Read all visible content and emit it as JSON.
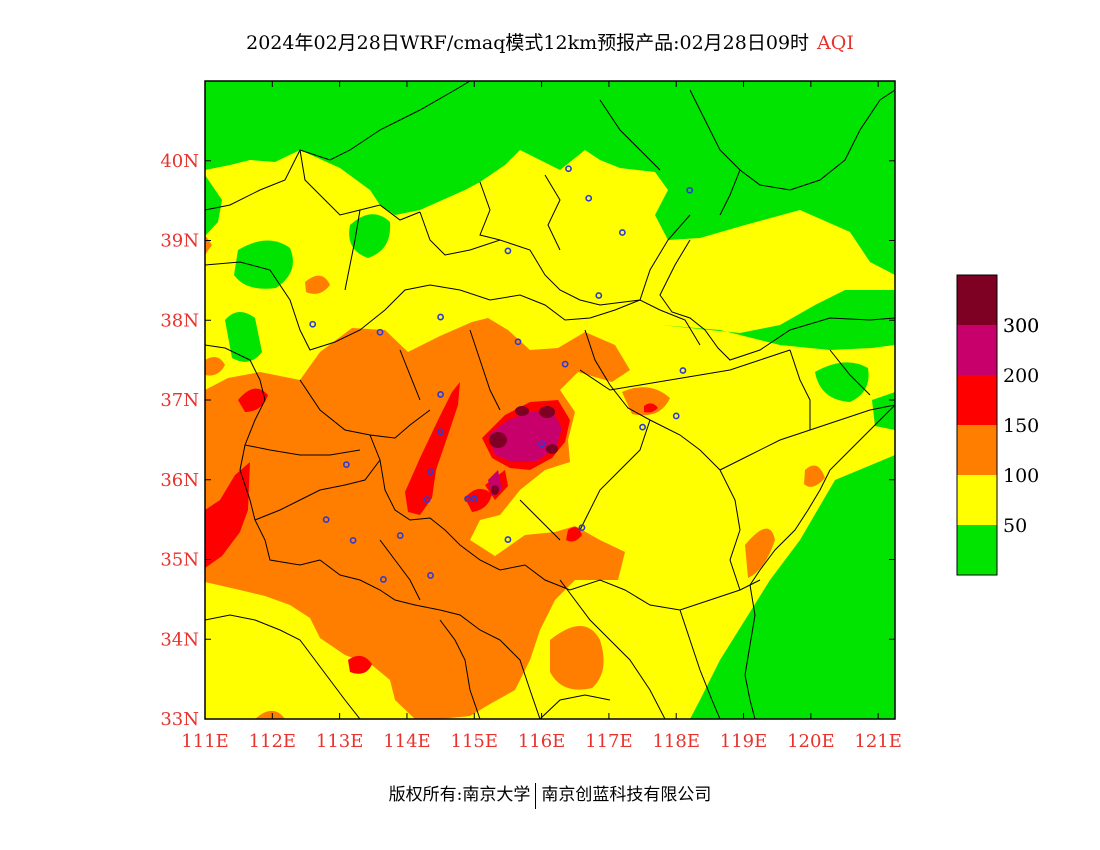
{
  "title": {
    "main": "2024年02月28日WRF/cmaq模式12km预报产品:02月28日09时",
    "variable": "AQI"
  },
  "axes": {
    "lon_labels": [
      "111E",
      "112E",
      "113E",
      "114E",
      "115E",
      "116E",
      "117E",
      "118E",
      "119E",
      "120E",
      "121E"
    ],
    "lat_labels": [
      "40N",
      "39N",
      "38N",
      "37N",
      "36N",
      "35N",
      "34N",
      "33N"
    ],
    "lon_range": [
      111,
      121.25
    ],
    "lat_range": [
      33,
      41
    ],
    "label_color": "#e8322d"
  },
  "legend": {
    "levels": [
      {
        "color": "#00e400"
      },
      {
        "color": "#ffff00",
        "label": "50"
      },
      {
        "color": "#ff7e00",
        "label": "100"
      },
      {
        "color": "#ff0000",
        "label": "150"
      },
      {
        "color": "#c8006b",
        "label": "200"
      },
      {
        "color": "#7e0023",
        "label": "300"
      }
    ]
  },
  "stations": [
    [
      116.4,
      39.9
    ],
    [
      117.2,
      39.1
    ],
    [
      116.7,
      39.53
    ],
    [
      118.2,
      39.63
    ],
    [
      115.5,
      38.87
    ],
    [
      116.85,
      38.31
    ],
    [
      114.5,
      38.04
    ],
    [
      113.6,
      37.85
    ],
    [
      112.6,
      37.95
    ],
    [
      115.65,
      37.73
    ],
    [
      116.35,
      37.45
    ],
    [
      114.5,
      37.07
    ],
    [
      117.5,
      36.66
    ],
    [
      114.5,
      36.6
    ],
    [
      116.0,
      36.45
    ],
    [
      114.35,
      36.1
    ],
    [
      113.1,
      36.19
    ],
    [
      114.3,
      35.75
    ],
    [
      114.9,
      35.76
    ],
    [
      115.0,
      35.76
    ],
    [
      112.8,
      35.5
    ],
    [
      113.9,
      35.3
    ],
    [
      113.2,
      35.24
    ],
    [
      115.5,
      35.25
    ],
    [
      116.6,
      35.4
    ],
    [
      114.35,
      34.8
    ],
    [
      113.65,
      34.75
    ],
    [
      118.1,
      37.37
    ],
    [
      118.0,
      36.8
    ]
  ],
  "footer": {
    "copyright": "版权所有:南京大学",
    "company": "南京创蓝科技有限公司"
  }
}
